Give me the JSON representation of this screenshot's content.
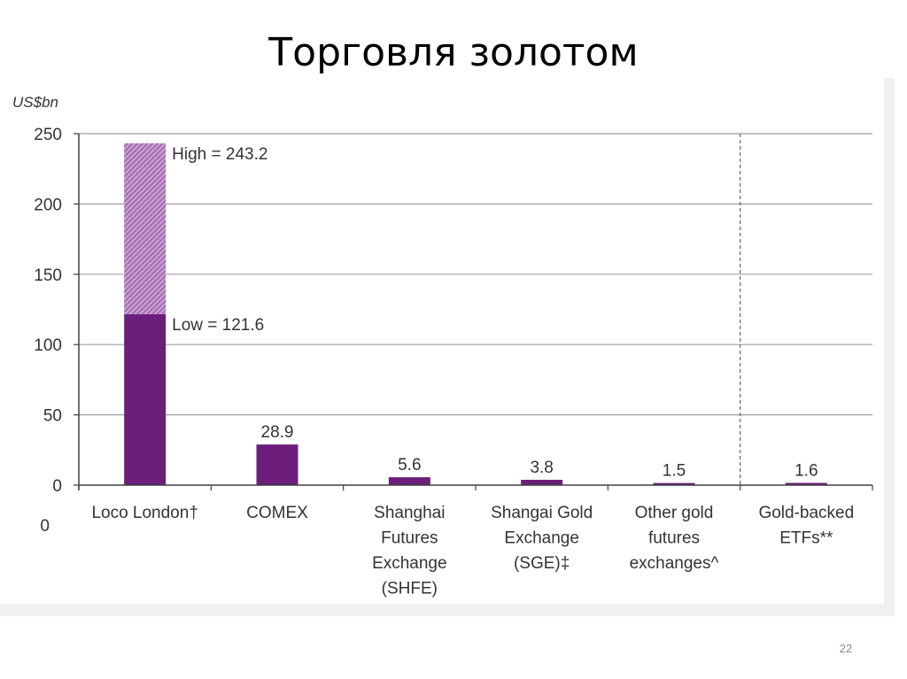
{
  "slide": {
    "title": "Торговля золотом",
    "page_number": "22"
  },
  "colors": {
    "bar_solid": "#6b1f7a",
    "bar_hatched_bg": "#c79ad0",
    "bar_hatched_line": "#7d3a8a",
    "grid": "#a0a0a0",
    "axis": "#404040",
    "text": "#333333"
  },
  "chart_data": {
    "type": "bar",
    "title": "",
    "ylabel": "US$bn",
    "xlabel": "",
    "ylim": [
      0,
      250
    ],
    "yticks": [
      0,
      50,
      100,
      150,
      200,
      250
    ],
    "extra_left_label": "0",
    "grid": true,
    "categories": [
      "Loco London†",
      "COMEX",
      "Shanghai Futures Exchange (SHFE)",
      "Shangai Gold Exchange (SGE)‡",
      "Other gold futures exchanges^",
      "Gold-backed ETFs**"
    ],
    "category_label_lines": [
      [
        "Loco London†"
      ],
      [
        "COMEX"
      ],
      [
        "Shanghai",
        "Futures",
        "Exchange",
        "(SHFE)"
      ],
      [
        "Shangai Gold",
        "Exchange",
        "(SGE)‡"
      ],
      [
        "Other gold",
        "futures",
        "exchanges^"
      ],
      [
        "Gold-backed",
        "ETFs**"
      ]
    ],
    "series": [
      {
        "name": "Low",
        "values": [
          121.6,
          28.9,
          5.6,
          3.8,
          1.5,
          1.6
        ]
      },
      {
        "name": "High (range above low)",
        "values": [
          121.6,
          0,
          0,
          0,
          0,
          0
        ]
      }
    ],
    "data_labels": [
      "",
      "28.9",
      "5.6",
      "3.8",
      "1.5",
      "1.6"
    ],
    "annotations": [
      {
        "text": "High = 243.2",
        "category": "Loco London†",
        "value": 243.2
      },
      {
        "text": "Low = 121.6",
        "category": "Loco London†",
        "value": 121.6
      }
    ],
    "separator": {
      "style": "dashed",
      "between": [
        "Other gold futures exchanges^",
        "Gold-backed ETFs**"
      ]
    }
  }
}
